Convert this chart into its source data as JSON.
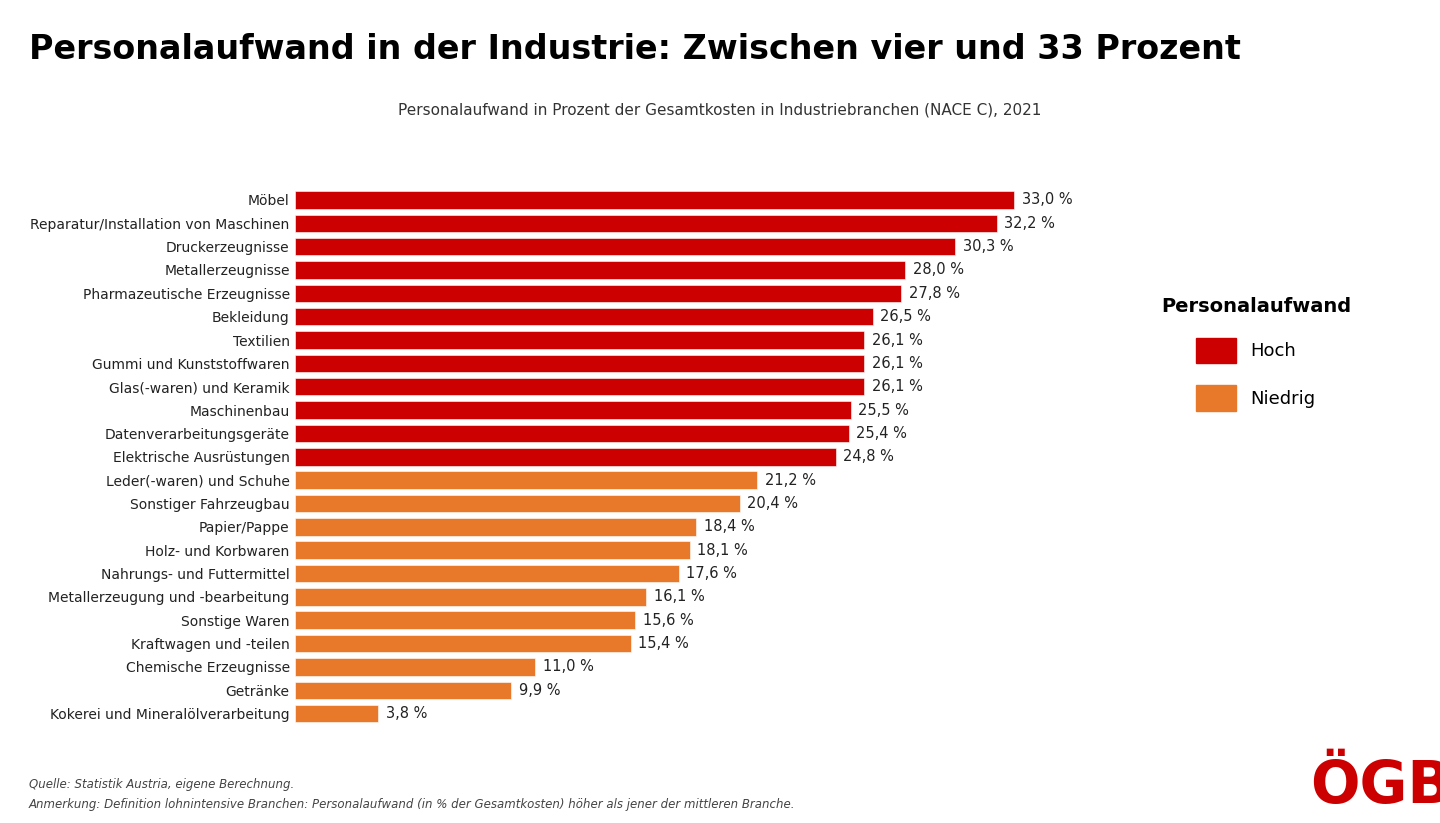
{
  "title": "Personalaufwand in der Industrie: Zwischen vier und 33 Prozent",
  "subtitle": "Personalaufwand in Prozent der Gesamtkosten in Industriebranchen (NACE C), 2021",
  "categories": [
    "Möbel",
    "Reparatur/Installation von Maschinen",
    "Druckerzeugnisse",
    "Metallerzeugnisse",
    "Pharmazeutische Erzeugnisse",
    "Bekleidung",
    "Textilien",
    "Gummi und Kunststoffwaren",
    "Glas(-waren) und Keramik",
    "Maschinenbau",
    "Datenverarbeitungsgeräte",
    "Elektrische Ausrüstungen",
    "Leder(-waren) und Schuhe",
    "Sonstiger Fahrzeugbau",
    "Papier/Pappe",
    "Holz- und Korbwaren",
    "Nahrungs- und Futtermittel",
    "Metallerzeugung und -bearbeitung",
    "Sonstige Waren",
    "Kraftwagen und -teilen",
    "Chemische Erzeugnisse",
    "Getränke",
    "Kokerei und Mineralölverarbeitung"
  ],
  "values": [
    33.0,
    32.2,
    30.3,
    28.0,
    27.8,
    26.5,
    26.1,
    26.1,
    26.1,
    25.5,
    25.4,
    24.8,
    21.2,
    20.4,
    18.4,
    18.1,
    17.6,
    16.1,
    15.6,
    15.4,
    11.0,
    9.9,
    3.8
  ],
  "colors": [
    "#CC0000",
    "#CC0000",
    "#CC0000",
    "#CC0000",
    "#CC0000",
    "#CC0000",
    "#CC0000",
    "#CC0000",
    "#CC0000",
    "#CC0000",
    "#CC0000",
    "#CC0000",
    "#E8792A",
    "#E8792A",
    "#E8792A",
    "#E8792A",
    "#E8792A",
    "#E8792A",
    "#E8792A",
    "#E8792A",
    "#E8792A",
    "#E8792A",
    "#E8792A"
  ],
  "color_hoch": "#CC0000",
  "color_niedrig": "#E8792A",
  "legend_title": "Personalaufwand",
  "legend_hoch": "Hoch",
  "legend_niedrig": "Niedrig",
  "footnote1": "Quelle: Statistik Austria, eigene Berechnung.",
  "footnote2": "Anmerkung: Definition lohnintensive Branchen: Personalaufwand (in % der Gesamtkosten) höher als jener der mittleren Branche.",
  "ogb_text": "ÖGB",
  "background_color": "#FFFFFF",
  "title_fontsize": 24,
  "subtitle_fontsize": 11,
  "label_fontsize": 10,
  "value_fontsize": 10.5,
  "xlim": [
    0,
    38
  ]
}
